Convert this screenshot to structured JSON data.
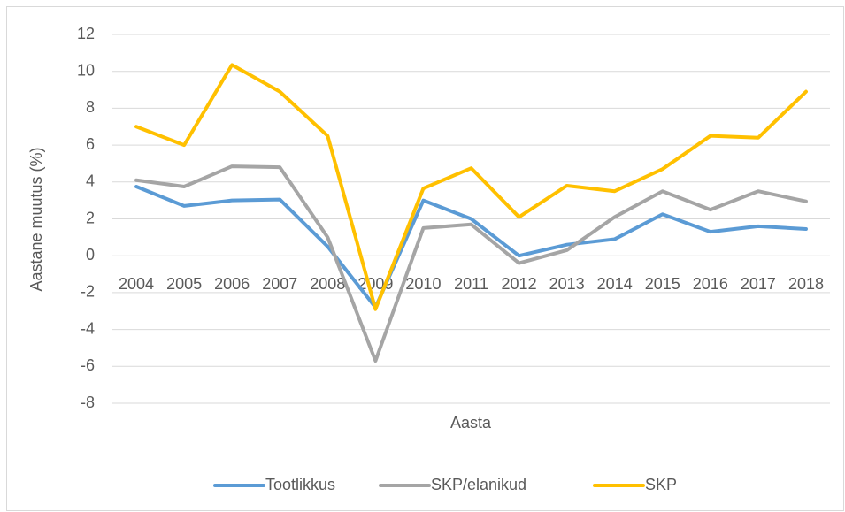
{
  "chart_data": {
    "type": "line",
    "y_label": "Aastane muutus (%)",
    "x_label": "Aasta",
    "categories": [
      "2004",
      "2005",
      "2006",
      "2007",
      "2008",
      "2009",
      "2010",
      "2011",
      "2012",
      "2013",
      "2014",
      "2015",
      "2016",
      "2017",
      "2018"
    ],
    "series": [
      {
        "name": "Tootlikkus",
        "color": "#5b9bd5",
        "values": [
          3.75,
          2.7,
          3.0,
          3.05,
          0.5,
          -2.8,
          3.0,
          2.0,
          0.0,
          0.6,
          0.9,
          2.25,
          1.3,
          1.6,
          1.45
        ]
      },
      {
        "name": "SKP/elanikud",
        "color": "#a5a5a5",
        "values": [
          4.1,
          3.75,
          4.85,
          4.8,
          1.0,
          -5.7,
          1.5,
          1.7,
          -0.4,
          0.3,
          2.1,
          3.5,
          2.5,
          3.5,
          2.95
        ]
      },
      {
        "name": "SKP",
        "color": "#ffc000",
        "values": [
          7.0,
          6.0,
          10.35,
          8.9,
          6.5,
          -2.9,
          3.65,
          4.75,
          2.1,
          3.8,
          3.5,
          4.7,
          6.5,
          6.4,
          8.9
        ]
      }
    ],
    "ylim": [
      -8,
      12
    ],
    "yticks": [
      -8,
      -6,
      -4,
      -2,
      0,
      2,
      4,
      6,
      8,
      10,
      12
    ],
    "grid": true,
    "legend": "bottom"
  }
}
